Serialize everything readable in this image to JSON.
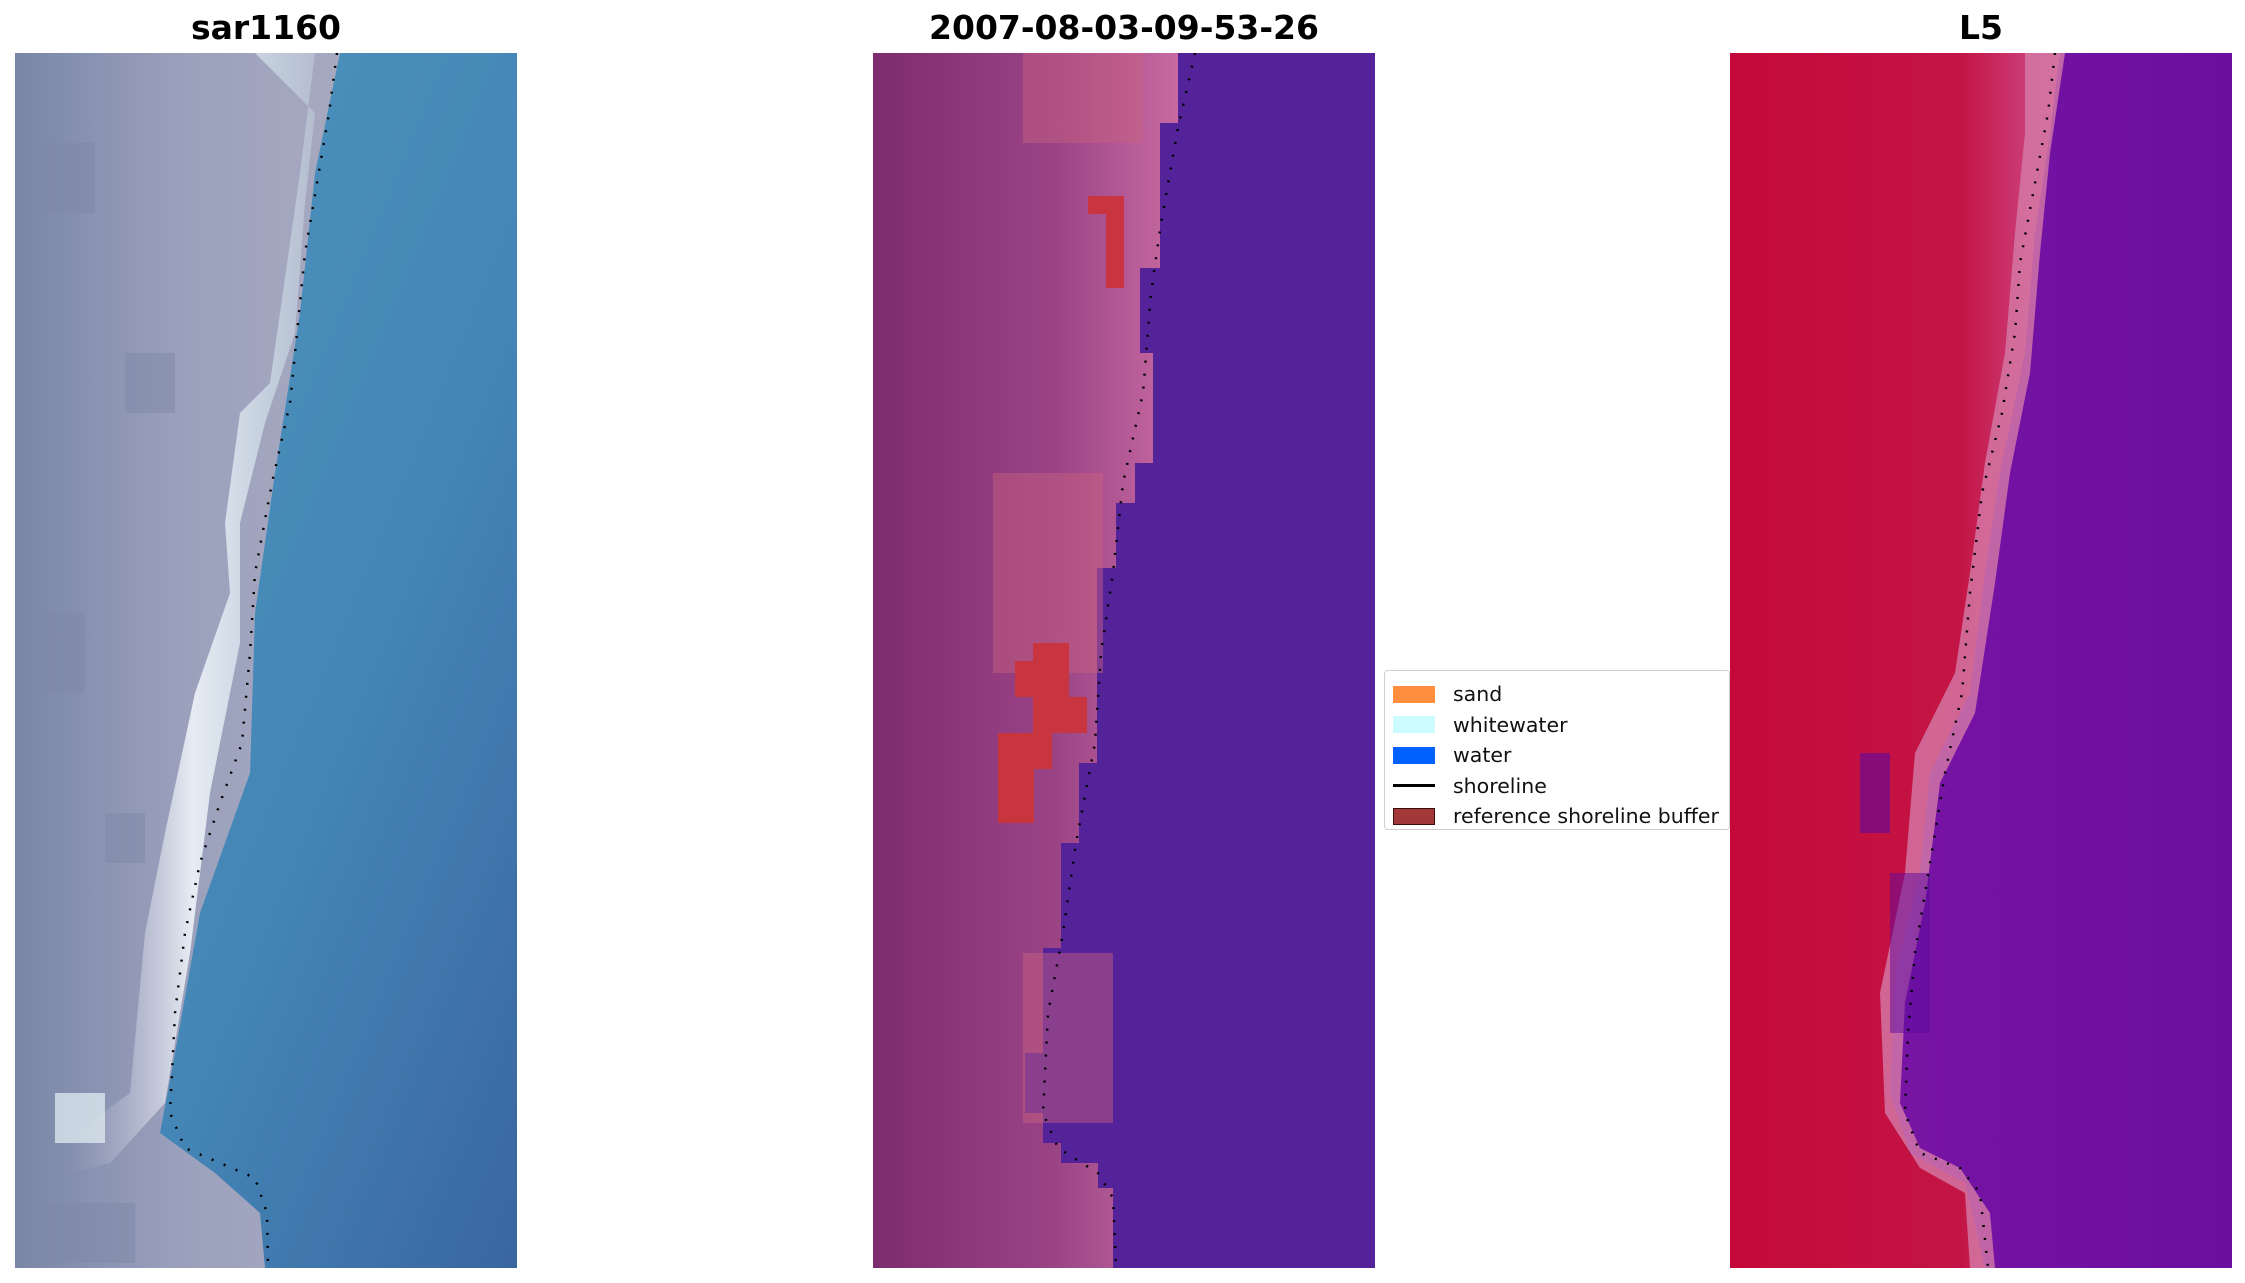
{
  "panels": {
    "left": {
      "title": "sar1160"
    },
    "middle": {
      "title": "2007-08-03-09-53-26"
    },
    "right": {
      "title": "L5"
    }
  },
  "legend": {
    "items": [
      {
        "label": "sand",
        "color": "#ff8f3f",
        "kind": "patch"
      },
      {
        "label": "whitewater",
        "color": "#ccfcff",
        "kind": "patch"
      },
      {
        "label": "water",
        "color": "#0061ff",
        "kind": "patch"
      },
      {
        "label": "shoreline",
        "color": "#000000",
        "kind": "line"
      },
      {
        "label": "reference shoreline buffer",
        "color": "#a23838",
        "kind": "patch-edged"
      }
    ]
  },
  "colors": {
    "satellite_water": "#4a89b8",
    "satellite_land": "#8c93b0",
    "classified_water": "#54239a",
    "classified_land": "#8e3a7c",
    "classified_beach": "#bf5c99",
    "buffer_red": "#c9353f",
    "index_red": "#c2103c",
    "index_purple": "#6a12a0"
  }
}
